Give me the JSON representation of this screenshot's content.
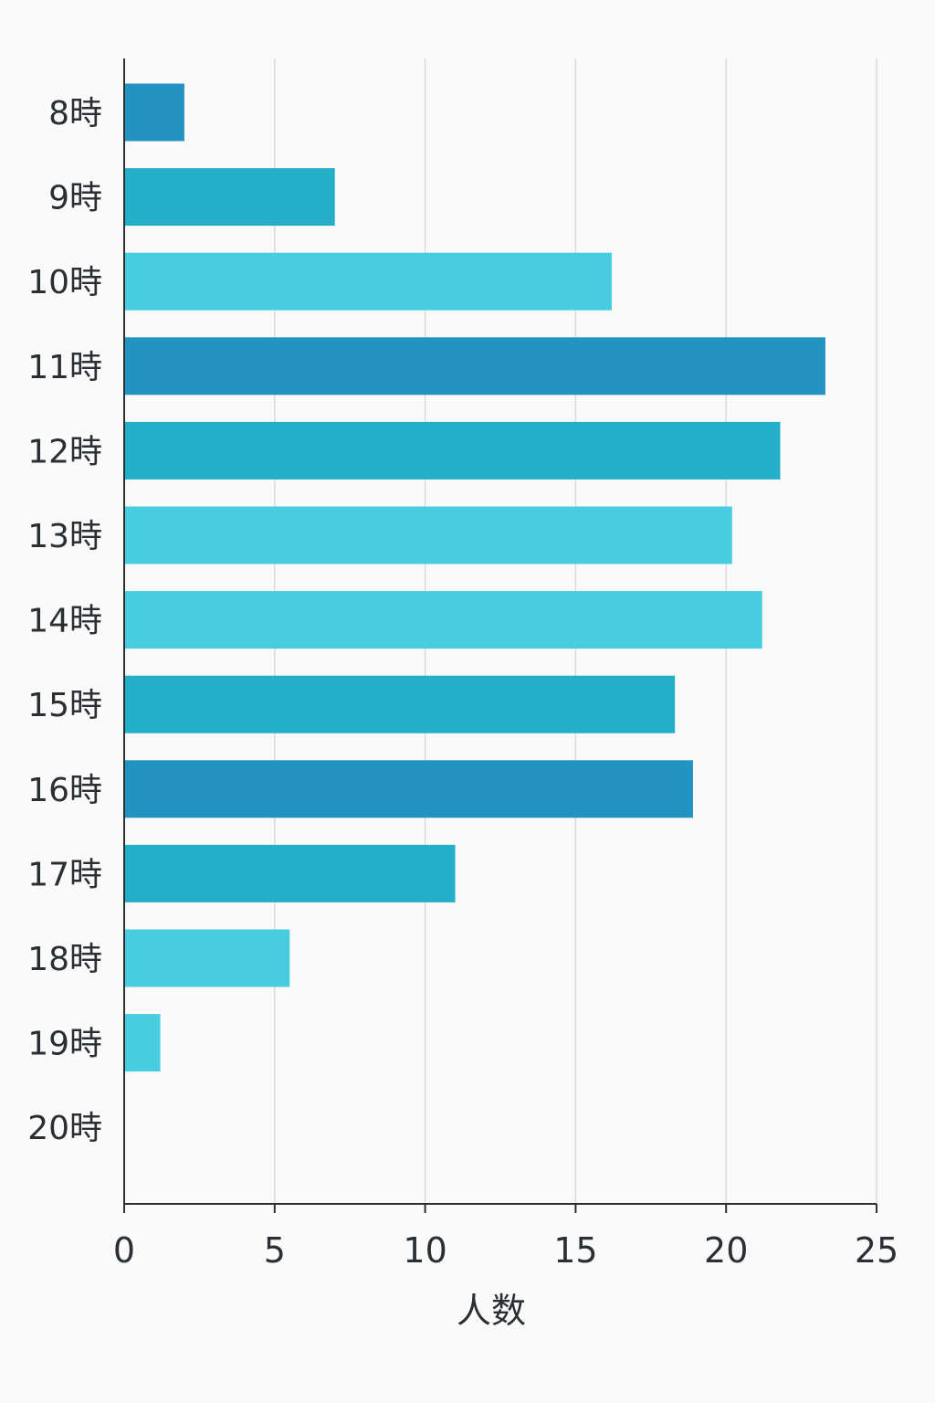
{
  "chart_data": {
    "type": "bar",
    "orientation": "horizontal",
    "title": "",
    "xlabel": "人数",
    "ylabel": "",
    "xlim": [
      0,
      25
    ],
    "x_ticks": [
      "0",
      "5",
      "10",
      "15",
      "20",
      "25"
    ],
    "grid": true,
    "categories": [
      "8時",
      "9時",
      "10時",
      "11時",
      "12時",
      "13時",
      "14時",
      "15時",
      "16時",
      "17時",
      "18時",
      "19時",
      "20時"
    ],
    "values": [
      2,
      7,
      16.2,
      23.3,
      21.8,
      20.2,
      21.2,
      18.3,
      18.9,
      11,
      5.5,
      1.2,
      0
    ],
    "bar_colors": [
      "#2393c2",
      "#25aec8",
      "#48cce0",
      "#2393c2",
      "#25aec8",
      "#48cce0",
      "#48cce0",
      "#25aec8",
      "#2393c2",
      "#25aec8",
      "#48cce0",
      "#48cce0",
      "#48cce0"
    ]
  }
}
